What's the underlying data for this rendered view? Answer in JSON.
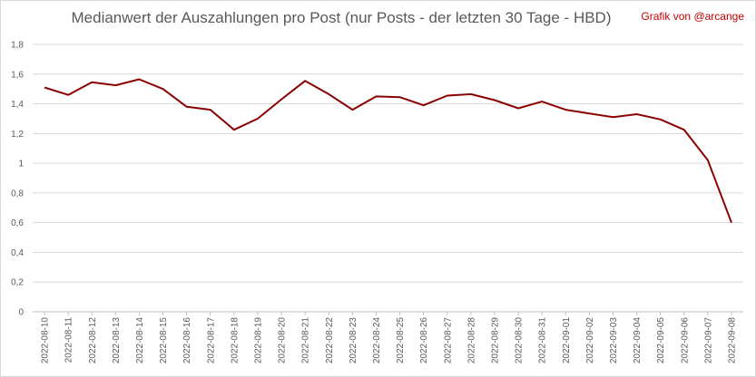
{
  "chart_data": {
    "type": "line",
    "title": "Medianwert der Auszahlungen pro Post (nur Posts - der letzten 30 Tage - HBD)",
    "credit": "Grafik von @arcange",
    "xlabel": "",
    "ylabel": "",
    "ylim": [
      0,
      1.8
    ],
    "yticks": [
      "0",
      "0,2",
      "0,4",
      "0,6",
      "0,8",
      "1",
      "1,2",
      "1,4",
      "1,6",
      "1,8"
    ],
    "grid": true,
    "legend": "none",
    "line_color": "#8b0000",
    "categories": [
      "2022-08-10",
      "2022-08-11",
      "2022-08-12",
      "2022-08-13",
      "2022-08-14",
      "2022-08-15",
      "2022-08-16",
      "2022-08-17",
      "2022-08-18",
      "2022-08-19",
      "2022-08-20",
      "2022-08-21",
      "2022-08-22",
      "2022-08-23",
      "2022-08-24",
      "2022-08-25",
      "2022-08-26",
      "2022-08-27",
      "2022-08-28",
      "2022-08-29",
      "2022-08-30",
      "2022-08-31",
      "2022-09-01",
      "2022-09-02",
      "2022-09-03",
      "2022-09-04",
      "2022-09-05",
      "2022-09-06",
      "2022-09-07",
      "2022-09-08"
    ],
    "values": [
      1.51,
      1.46,
      1.545,
      1.525,
      1.565,
      1.5,
      1.38,
      1.36,
      1.225,
      1.3,
      1.43,
      1.555,
      1.465,
      1.36,
      1.45,
      1.445,
      1.39,
      1.455,
      1.465,
      1.425,
      1.37,
      1.415,
      1.36,
      1.335,
      1.31,
      1.33,
      1.295,
      1.225,
      1.02,
      0.6
    ]
  }
}
